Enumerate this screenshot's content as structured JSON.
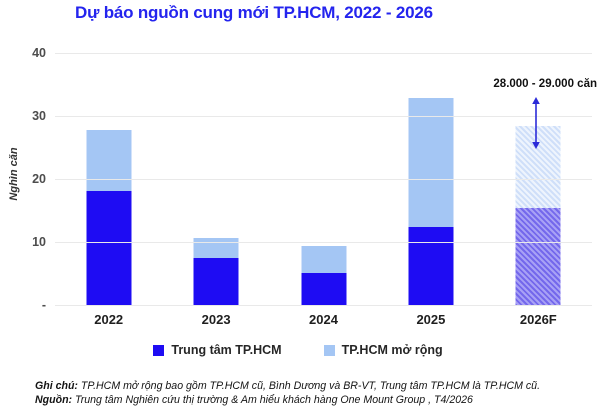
{
  "chart_data": {
    "type": "bar",
    "stacked": true,
    "title": "Dự báo nguồn cung mới TP.HCM, 2022 - 2026",
    "ylabel": "Nghìn căn",
    "xlabel": "",
    "ylim": [
      0,
      40
    ],
    "grid": "horizontal",
    "legend_position": "bottom",
    "yticks": [
      {
        "value": 40,
        "label": "40"
      },
      {
        "value": 30,
        "label": "30"
      },
      {
        "value": 20,
        "label": "20"
      },
      {
        "value": 10,
        "label": "10"
      },
      {
        "value": 0,
        "label": "-"
      }
    ],
    "categories": [
      "2022",
      "2023",
      "2024",
      "2025",
      "2026F"
    ],
    "series": [
      {
        "name": "Trung tâm TP.HCM",
        "color": "#1E0CF3",
        "values": [
          18.2,
          7.6,
          5.2,
          12.5,
          15.5
        ]
      },
      {
        "name": "TP.HCM mở rộng",
        "color": "#A4C6F4",
        "values": [
          9.8,
          3.2,
          4.4,
          20.5,
          13.1
        ]
      }
    ],
    "totals": [
      28.0,
      10.8,
      9.6,
      33.0,
      28.6
    ],
    "forecast_category": "2026F",
    "annotation": {
      "text": "28.000 - 29.000 căn",
      "target_category": "2026F"
    }
  },
  "notes": {
    "ghi_chu_label": "Ghi chú:",
    "ghi_chu_text": " TP.HCM mở rộng bao gồm TP.HCM cũ, Bình Dương và BR-VT, Trung tâm TP.HCM là TP.HCM cũ.",
    "nguon_label": "Nguồn:",
    "nguon_text": " Trung tâm Nghiên cứu thị trường & Am hiểu khách hàng One Mount Group , T4/2026"
  },
  "colors": {
    "title": "#2424EE",
    "primary": "#1E0CF3",
    "secondary": "#A4C6F4",
    "forecast_primary_hatch": "#7A6FEE",
    "forecast_secondary_hatch": "#D7E4FA",
    "arrow": "#2B2BD8",
    "gridline": "#E9E9E9"
  }
}
